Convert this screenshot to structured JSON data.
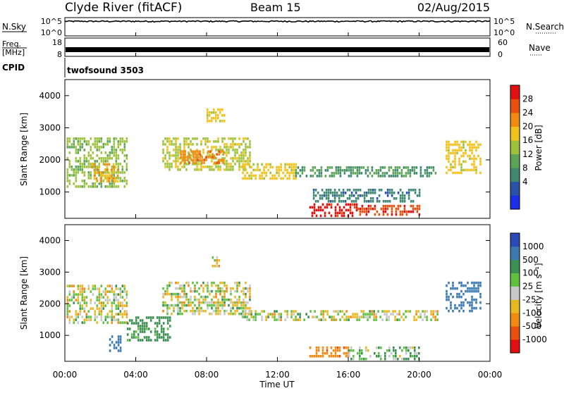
{
  "header": {
    "station": "Clyde River (fitACF)",
    "beam": "Beam 15",
    "date": "02/Aug/2015"
  },
  "panels": {
    "nsky": {
      "label": "N.Sky",
      "right_label": "N.Search",
      "left_ticks": [
        "10^5",
        "10^0"
      ],
      "right_ticks": [
        "10^5",
        "10^0"
      ]
    },
    "freq": {
      "label_line1": "Freq.",
      "label_line2": "[MHz]",
      "left_ticks": [
        "18",
        "8"
      ],
      "right_ticks": [
        "60",
        "0"
      ],
      "right_label": "Nave"
    },
    "cpid": {
      "label": "CPID",
      "value": "twofsound 3503"
    }
  },
  "power_panel": {
    "ylabel": "Slant Range [km]",
    "yticks": [
      "4000",
      "3000",
      "2000",
      "1000"
    ],
    "colorbar_label": "Power [dB]",
    "colorbar_ticks": [
      "28",
      "24",
      "20",
      "16",
      "12",
      "8",
      "4"
    ],
    "colors": [
      "#1e2ee8",
      "#2a52a8",
      "#3e8870",
      "#5ca455",
      "#9cc23c",
      "#f2c21c",
      "#f08a10",
      "#e85010",
      "#e01010"
    ]
  },
  "velocity_panel": {
    "ylabel": "Slant Range [km]",
    "yticks": [
      "4000",
      "3000",
      "2000",
      "1000"
    ],
    "colorbar_label": "Velocity [m s⁻¹]",
    "colorbar_ticks": [
      "1000",
      "500",
      "100",
      "25",
      "-25",
      "-100",
      "-500",
      "-1000"
    ],
    "colors": [
      "#2a4ab8",
      "#3a7ab0",
      "#3a9050",
      "#60c040",
      "#c8c8c8",
      "#e8b820",
      "#f08a10",
      "#e85010",
      "#e01010"
    ]
  },
  "x_axis": {
    "label": "Time UT",
    "ticks": [
      "00:00",
      "04:00",
      "08:00",
      "12:00",
      "16:00",
      "20:00",
      "00:00"
    ]
  },
  "chart_data": [
    {
      "type": "line",
      "title": "N.Sky / N.Search",
      "x_range_hours": [
        0,
        24
      ],
      "yscale": "log",
      "ylim": [
        1,
        100000
      ],
      "series": [
        {
          "name": "N.Sky",
          "approx_level": 10000
        }
      ]
    },
    {
      "type": "line",
      "title": "Freq. [MHz] / Nave",
      "x_range_hours": [
        0,
        24
      ],
      "ylim": [
        8,
        18
      ],
      "series": [
        {
          "name": "Freq.",
          "approx_level_mhz": 11
        }
      ]
    },
    {
      "type": "heatmap",
      "title": "Power [dB]",
      "xlabel": "Time UT",
      "ylabel": "Slant Range [km]",
      "x_range_hours": [
        0,
        24
      ],
      "ylim_km": [
        180,
        4500
      ],
      "zlim": [
        0,
        30
      ],
      "regions": [
        {
          "t0": 0.1,
          "t1": 3.5,
          "r0": 1200,
          "r1": 2700,
          "z": 14
        },
        {
          "t0": 1.5,
          "t1": 3.0,
          "r0": 1300,
          "r1": 1900,
          "z": 20
        },
        {
          "t0": 5.5,
          "t1": 10.5,
          "r0": 1700,
          "r1": 2700,
          "z": 16
        },
        {
          "t0": 6.5,
          "t1": 9.0,
          "r0": 1900,
          "r1": 2300,
          "z": 22
        },
        {
          "t0": 10.0,
          "t1": 13.0,
          "r0": 1400,
          "r1": 1900,
          "z": 18
        },
        {
          "t0": 13.0,
          "t1": 21.0,
          "r0": 1500,
          "r1": 1800,
          "z": 10
        },
        {
          "t0": 21.5,
          "t1": 23.5,
          "r0": 1600,
          "r1": 2600,
          "z": 18
        },
        {
          "t0": 13.8,
          "t1": 16.5,
          "r0": 250,
          "r1": 650,
          "z": 28
        },
        {
          "t0": 16.5,
          "t1": 20.0,
          "r0": 300,
          "r1": 600,
          "z": 26
        },
        {
          "t0": 14.0,
          "t1": 20.0,
          "r0": 700,
          "r1": 1100,
          "z": 8
        },
        {
          "t0": 8.0,
          "t1": 9.0,
          "r0": 3200,
          "r1": 3600,
          "z": 18
        }
      ]
    },
    {
      "type": "heatmap",
      "title": "Velocity [m s⁻¹]",
      "xlabel": "Time UT",
      "ylabel": "Slant Range [km]",
      "x_range_hours": [
        0,
        24
      ],
      "ylim_km": [
        180,
        4500
      ],
      "zlim": [
        -1000,
        1000
      ],
      "regions": [
        {
          "t0": 0.1,
          "t1": 3.5,
          "r0": 1400,
          "r1": 2600,
          "z": 0
        },
        {
          "t0": 2.5,
          "t1": 3.2,
          "r0": 500,
          "r1": 1000,
          "z": 800
        },
        {
          "t0": 5.5,
          "t1": 10.5,
          "r0": 1700,
          "r1": 2700,
          "z": 0
        },
        {
          "t0": 3.5,
          "t1": 6.0,
          "r0": 800,
          "r1": 1600,
          "z": 200
        },
        {
          "t0": 10.0,
          "t1": 21.0,
          "r0": 1500,
          "r1": 1800,
          "z": 0
        },
        {
          "t0": 13.8,
          "t1": 16.0,
          "r0": 300,
          "r1": 650,
          "z": -400
        },
        {
          "t0": 16.0,
          "t1": 20.0,
          "r0": 250,
          "r1": 650,
          "z": 90
        },
        {
          "t0": 21.5,
          "t1": 23.5,
          "r0": 1800,
          "r1": 2700,
          "z": 700
        },
        {
          "t0": 8.3,
          "t1": 8.7,
          "r0": 3200,
          "r1": 3500,
          "z": -60
        }
      ]
    }
  ]
}
